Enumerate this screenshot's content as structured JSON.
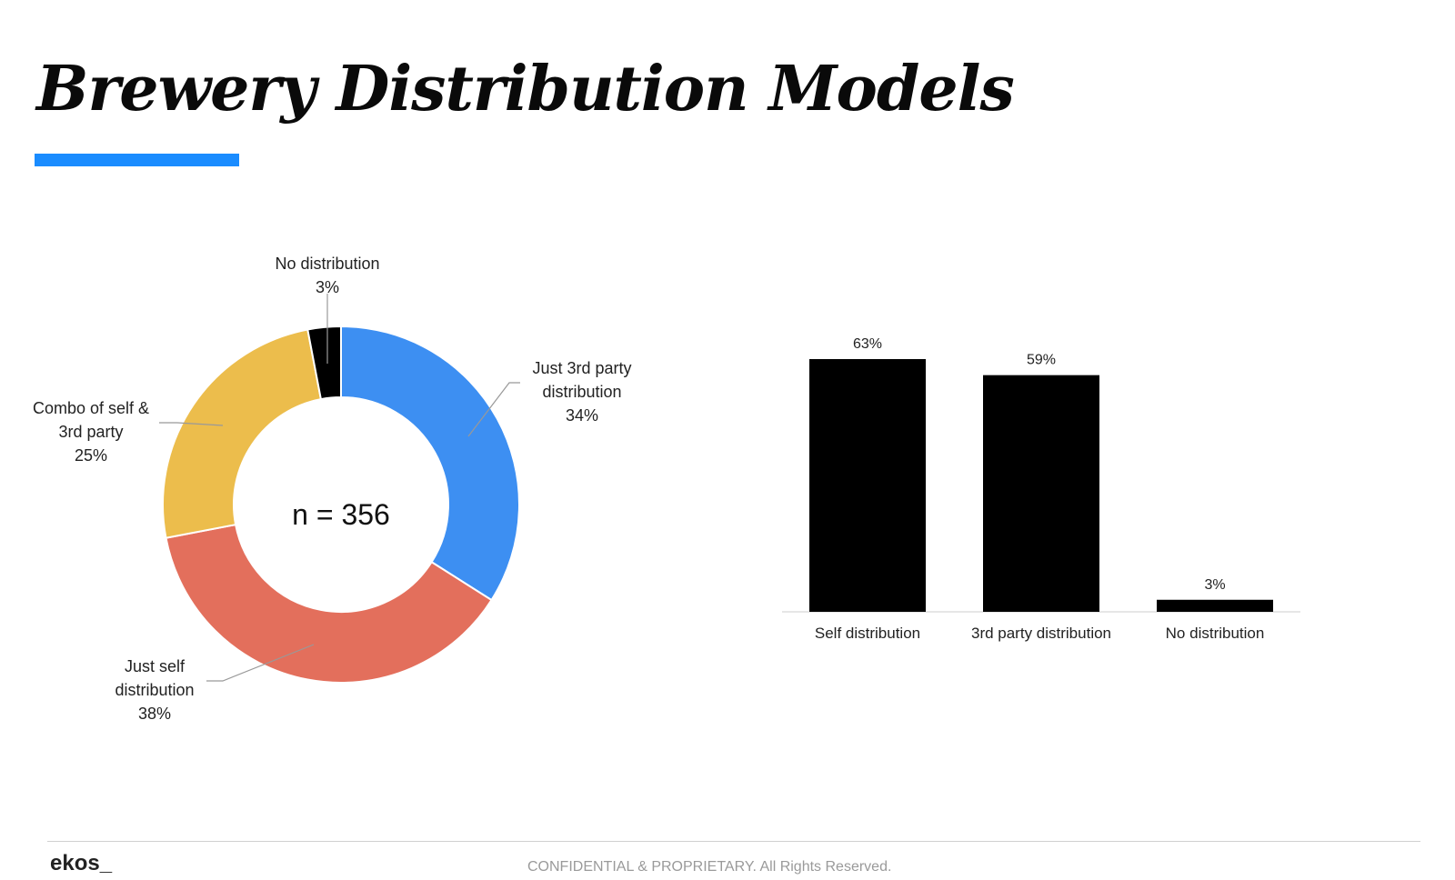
{
  "page": {
    "title": "Brewery Distribution Models",
    "accent_color": "#1a8cff",
    "footer_logo": "ekos_",
    "footer_text": "CONFIDENTIAL & PROPRIETARY. All Rights Reserved."
  },
  "chart_data": [
    {
      "type": "pie",
      "donut": true,
      "center_label": "n = 356",
      "slices": [
        {
          "label_lines": [
            "Just 3rd party",
            "distribution"
          ],
          "value": 34,
          "value_label": "34%",
          "color": "#3d8ff2"
        },
        {
          "label_lines": [
            "Just self",
            "distribution"
          ],
          "value": 38,
          "value_label": "38%",
          "color": "#e36f5c"
        },
        {
          "label_lines": [
            "Combo of self &",
            "3rd party"
          ],
          "value": 25,
          "value_label": "25%",
          "color": "#ecbd4c"
        },
        {
          "label_lines": [
            "No distribution"
          ],
          "value": 3,
          "value_label": "3%",
          "color": "#000000"
        }
      ]
    },
    {
      "type": "bar",
      "categories": [
        "Self distribution",
        "3rd party distribution",
        "No distribution"
      ],
      "values": [
        63,
        59,
        3
      ],
      "value_labels": [
        "63%",
        "59%",
        "3%"
      ],
      "bar_color": "#000000",
      "ylim": [
        0,
        63
      ]
    }
  ]
}
